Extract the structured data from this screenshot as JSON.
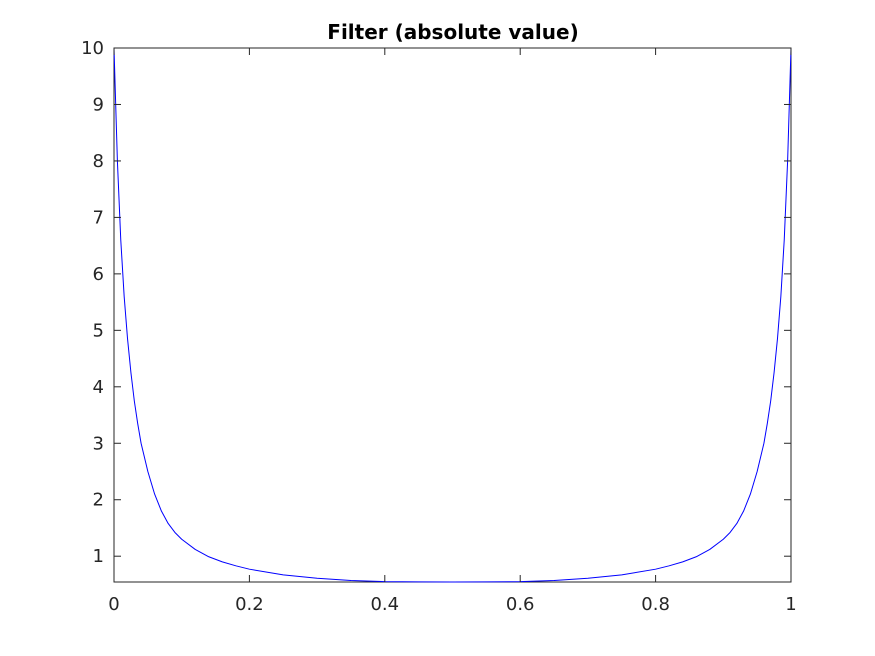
{
  "chart_data": {
    "type": "line",
    "title": "Filter (absolute value)",
    "xlabel": "",
    "ylabel": "",
    "xlim": [
      0,
      1
    ],
    "ylim": [
      0.5431,
      10
    ],
    "x_ticks": [
      0,
      0.2,
      0.4,
      0.6,
      0.8,
      1
    ],
    "x_tick_labels": [
      "0",
      "0.2",
      "0.4",
      "0.6",
      "0.8",
      "1"
    ],
    "y_ticks": [
      1,
      2,
      3,
      4,
      5,
      6,
      7,
      8,
      9,
      10
    ],
    "y_tick_labels": [
      "1",
      "2",
      "3",
      "4",
      "5",
      "6",
      "7",
      "8",
      "9",
      "10"
    ],
    "grid": false,
    "legend": "none",
    "series": [
      {
        "color": "#0000ff",
        "x": [
          0,
          0.005,
          0.01,
          0.015,
          0.02,
          0.025,
          0.03,
          0.035,
          0.04,
          0.05,
          0.06,
          0.07,
          0.08,
          0.09,
          0.1,
          0.12,
          0.14,
          0.16,
          0.18,
          0.2,
          0.25,
          0.3,
          0.35,
          0.4,
          0.45,
          0.5,
          0.55,
          0.6,
          0.65,
          0.7,
          0.75,
          0.8,
          0.82,
          0.84,
          0.86,
          0.88,
          0.9,
          0.91,
          0.92,
          0.93,
          0.94,
          0.95,
          0.96,
          0.965,
          0.97,
          0.975,
          0.98,
          0.985,
          0.99,
          0.995,
          1
        ],
        "y": [
          10,
          8.0,
          6.6,
          5.6,
          4.85,
          4.25,
          3.75,
          3.35,
          3.0,
          2.5,
          2.1,
          1.8,
          1.58,
          1.42,
          1.3,
          1.12,
          0.99,
          0.9,
          0.83,
          0.77,
          0.67,
          0.61,
          0.57,
          0.55,
          0.545,
          0.543,
          0.545,
          0.55,
          0.57,
          0.61,
          0.67,
          0.77,
          0.83,
          0.9,
          0.99,
          1.12,
          1.3,
          1.42,
          1.58,
          1.8,
          2.1,
          2.5,
          3.0,
          3.35,
          3.75,
          4.25,
          4.85,
          5.6,
          6.6,
          8.0,
          10
        ]
      }
    ]
  }
}
